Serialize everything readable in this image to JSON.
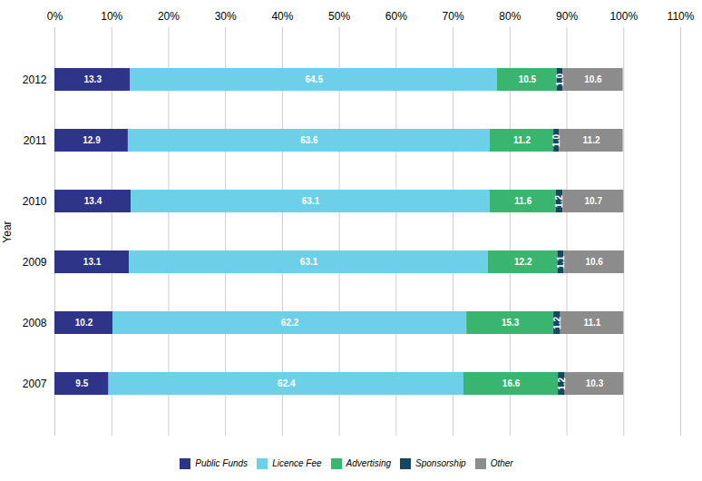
{
  "chart_data": {
    "type": "bar",
    "orientation": "horizontal",
    "stacked": true,
    "data_labels": true,
    "grid": true,
    "legend": "bottom",
    "ylabel": "Year",
    "categories": [
      "2012",
      "2011",
      "2010",
      "2009",
      "2008",
      "2007"
    ],
    "series": [
      {
        "name": "Public Funds",
        "color": "#2e3487",
        "values": [
          13.3,
          12.9,
          13.4,
          13.1,
          10.2,
          9.5
        ]
      },
      {
        "name": "Licence Fee",
        "color": "#6dd0e8",
        "values": [
          64.5,
          63.6,
          63.1,
          63.1,
          62.2,
          62.4
        ]
      },
      {
        "name": "Advertising",
        "color": "#3ab570",
        "values": [
          10.5,
          11.2,
          11.6,
          12.2,
          15.3,
          16.6
        ]
      },
      {
        "name": "Sponsorship",
        "color": "#14485f",
        "values": [
          1.0,
          1.0,
          1.2,
          1.1,
          1.2,
          1.2
        ],
        "value_labels": [
          "1.0",
          "1.0",
          "1.2",
          "1.1",
          "1.2",
          "1.2"
        ]
      },
      {
        "name": "Other",
        "color": "#8c8c8c",
        "values": [
          10.6,
          11.2,
          10.7,
          10.6,
          11.1,
          10.3
        ]
      }
    ],
    "xlim": [
      0,
      110
    ],
    "xticks": [
      {
        "value": 0,
        "label": "0%"
      },
      {
        "value": 10,
        "label": "10%"
      },
      {
        "value": 20,
        "label": "20%"
      },
      {
        "value": 30,
        "label": "30%"
      },
      {
        "value": 40,
        "label": "40%"
      },
      {
        "value": 50,
        "label": "50%"
      },
      {
        "value": 60,
        "label": "60%"
      },
      {
        "value": 70,
        "label": "70%"
      },
      {
        "value": 80,
        "label": "80%"
      },
      {
        "value": 90,
        "label": "90%"
      },
      {
        "value": 100,
        "label": "100%"
      },
      {
        "value": 110,
        "label": "110%"
      }
    ]
  }
}
